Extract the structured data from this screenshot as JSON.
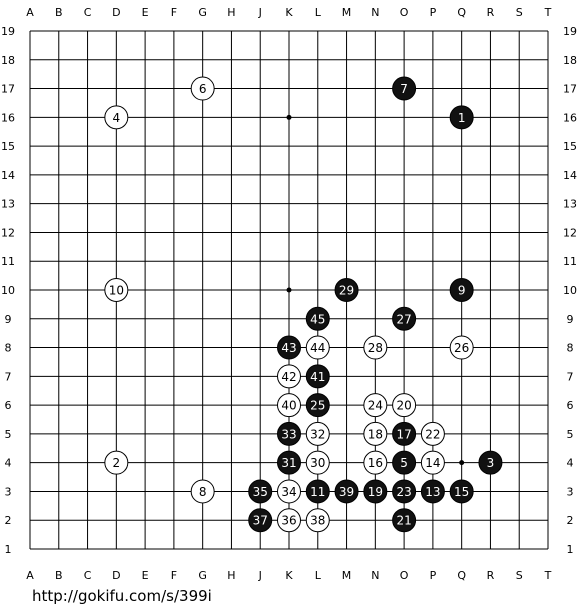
{
  "board": {
    "columns": [
      "A",
      "B",
      "C",
      "D",
      "E",
      "F",
      "G",
      "H",
      "J",
      "K",
      "L",
      "M",
      "N",
      "O",
      "P",
      "Q",
      "R",
      "S",
      "T"
    ],
    "rows": [
      19,
      18,
      17,
      16,
      15,
      14,
      13,
      12,
      11,
      10,
      9,
      8,
      7,
      6,
      5,
      4,
      3,
      2,
      1
    ],
    "star_points": [
      "D4",
      "D10",
      "D16",
      "K4",
      "K10",
      "K16",
      "Q4",
      "Q10",
      "Q16"
    ],
    "stones": [
      {
        "number": 1,
        "color": "black",
        "point": "Q16"
      },
      {
        "number": 2,
        "color": "white",
        "point": "D4"
      },
      {
        "number": 3,
        "color": "black",
        "point": "R4"
      },
      {
        "number": 4,
        "color": "white",
        "point": "D16"
      },
      {
        "number": 5,
        "color": "black",
        "point": "O4"
      },
      {
        "number": 6,
        "color": "white",
        "point": "G17"
      },
      {
        "number": 7,
        "color": "black",
        "point": "O17"
      },
      {
        "number": 8,
        "color": "white",
        "point": "G3"
      },
      {
        "number": 9,
        "color": "black",
        "point": "Q10"
      },
      {
        "number": 10,
        "color": "white",
        "point": "D10"
      },
      {
        "number": 11,
        "color": "black",
        "point": "L3"
      },
      {
        "number": 13,
        "color": "black",
        "point": "P3"
      },
      {
        "number": 14,
        "color": "white",
        "point": "P4"
      },
      {
        "number": 15,
        "color": "black",
        "point": "Q3"
      },
      {
        "number": 16,
        "color": "white",
        "point": "N4"
      },
      {
        "number": 17,
        "color": "black",
        "point": "O5"
      },
      {
        "number": 18,
        "color": "white",
        "point": "N5"
      },
      {
        "number": 19,
        "color": "black",
        "point": "N3"
      },
      {
        "number": 20,
        "color": "white",
        "point": "O6"
      },
      {
        "number": 21,
        "color": "black",
        "point": "O2"
      },
      {
        "number": 22,
        "color": "white",
        "point": "P5"
      },
      {
        "number": 23,
        "color": "black",
        "point": "O3"
      },
      {
        "number": 24,
        "color": "white",
        "point": "N6"
      },
      {
        "number": 25,
        "color": "black",
        "point": "L6"
      },
      {
        "number": 26,
        "color": "white",
        "point": "Q8"
      },
      {
        "number": 27,
        "color": "black",
        "point": "O9"
      },
      {
        "number": 28,
        "color": "white",
        "point": "N8"
      },
      {
        "number": 29,
        "color": "black",
        "point": "M10"
      },
      {
        "number": 30,
        "color": "white",
        "point": "L4"
      },
      {
        "number": 31,
        "color": "black",
        "point": "K4"
      },
      {
        "number": 32,
        "color": "white",
        "point": "L5"
      },
      {
        "number": 33,
        "color": "black",
        "point": "K5"
      },
      {
        "number": 34,
        "color": "white",
        "point": "K3"
      },
      {
        "number": 35,
        "color": "black",
        "point": "J3"
      },
      {
        "number": 36,
        "color": "white",
        "point": "K2"
      },
      {
        "number": 37,
        "color": "black",
        "point": "J2"
      },
      {
        "number": 38,
        "color": "white",
        "point": "L2"
      },
      {
        "number": 39,
        "color": "black",
        "point": "M3"
      },
      {
        "number": 40,
        "color": "white",
        "point": "K6"
      },
      {
        "number": 41,
        "color": "black",
        "point": "L7"
      },
      {
        "number": 42,
        "color": "white",
        "point": "K7"
      },
      {
        "number": 43,
        "color": "black",
        "point": "K8"
      },
      {
        "number": 44,
        "color": "white",
        "point": "L8"
      },
      {
        "number": 45,
        "color": "black",
        "point": "L9"
      }
    ]
  },
  "footer": {
    "url": "http://gokifu.com/s/399i"
  }
}
